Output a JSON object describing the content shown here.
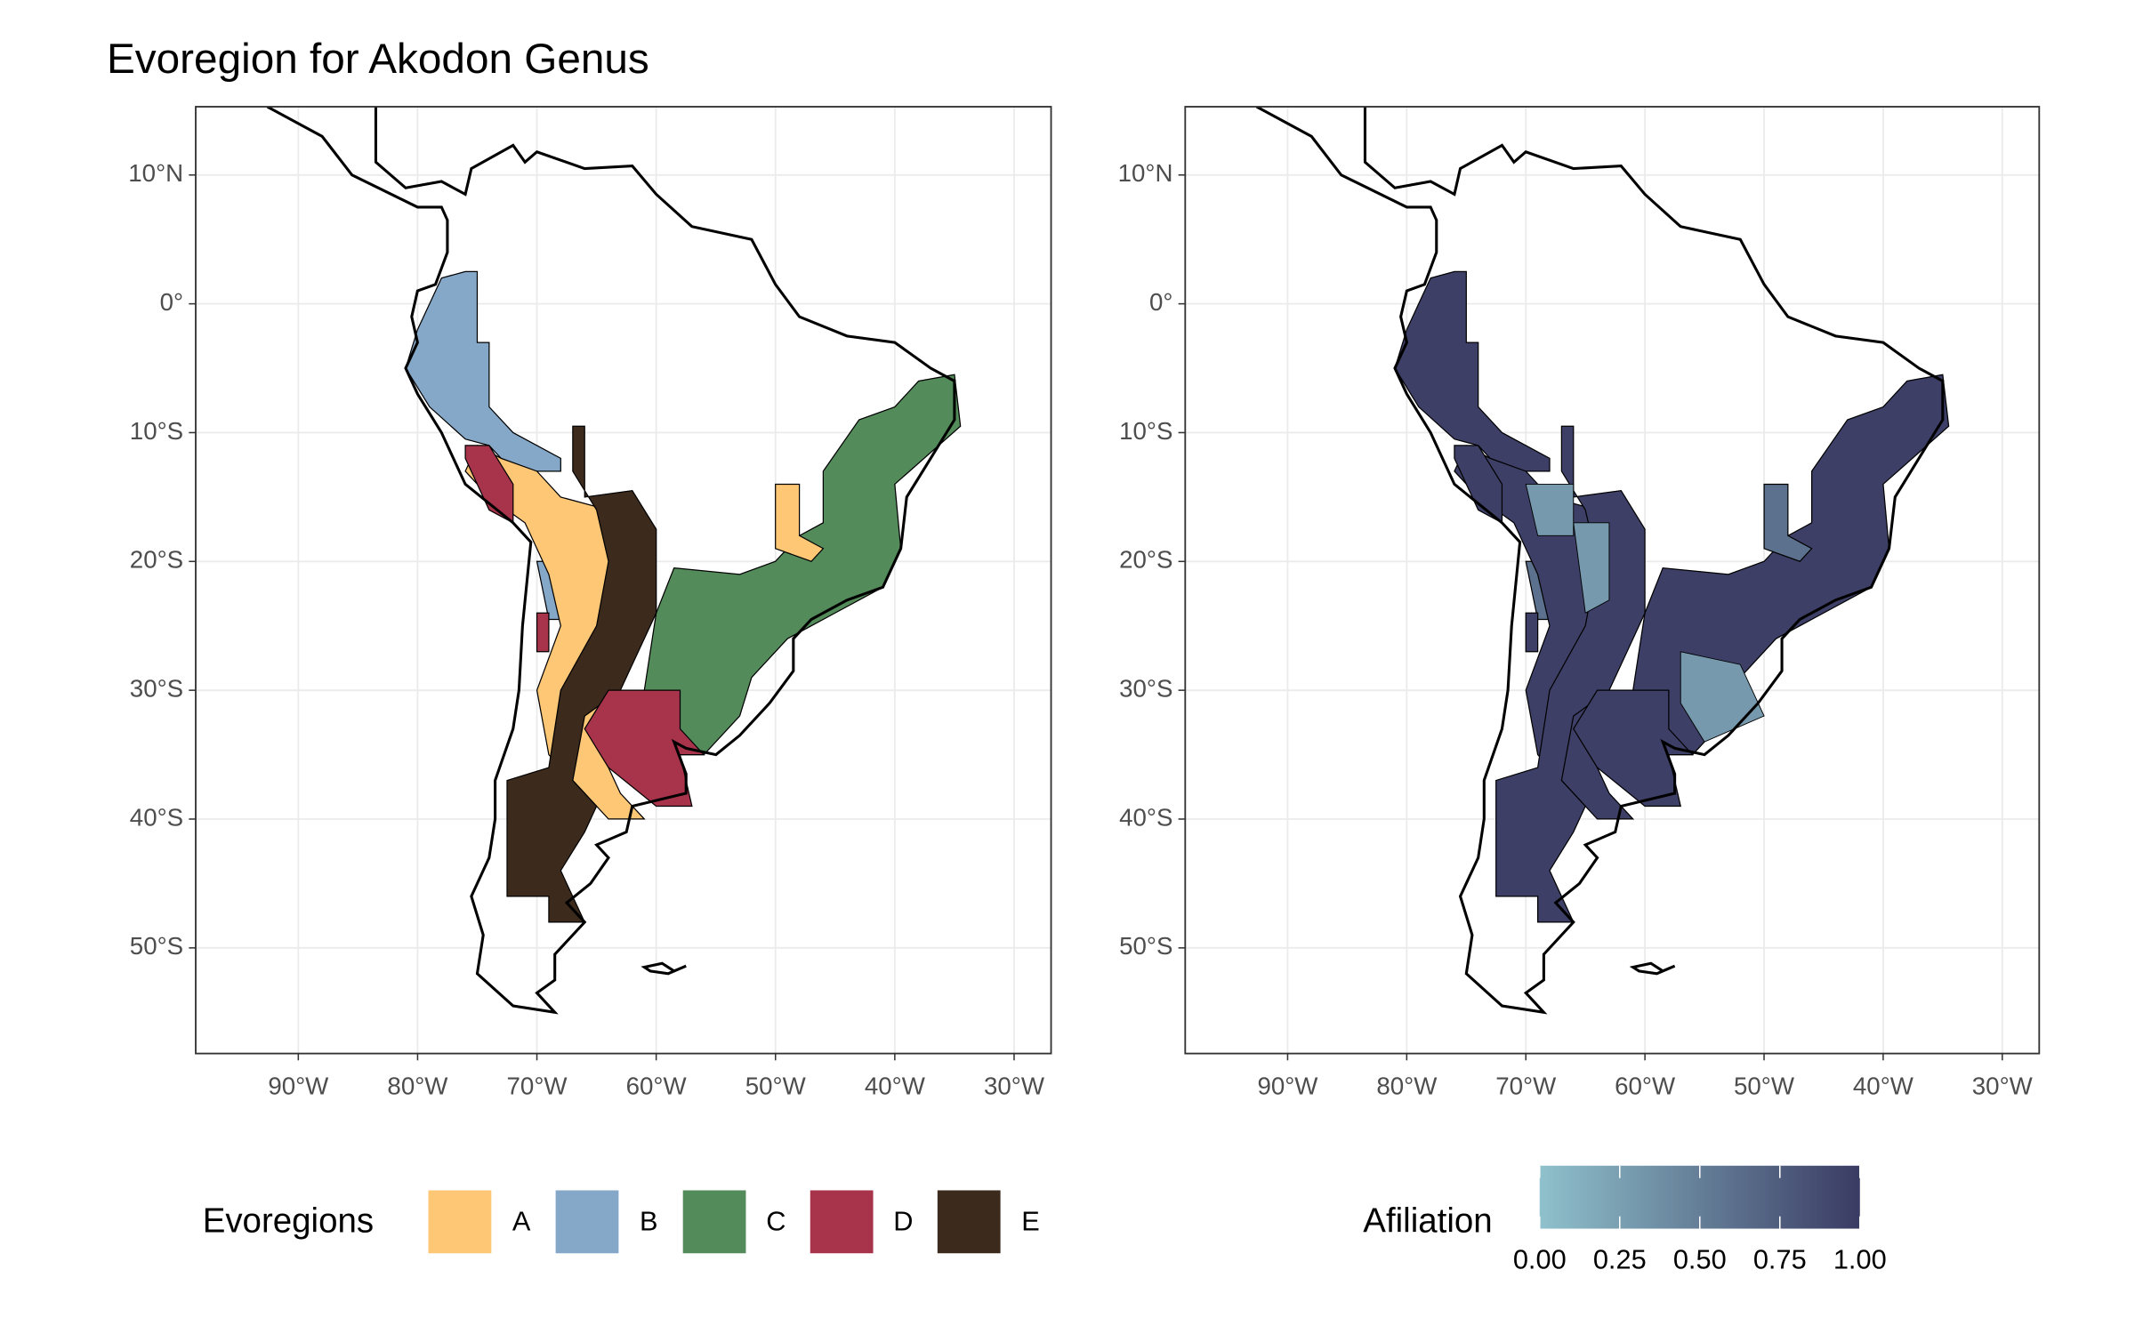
{
  "title": "Evoregion for Akodon Genus",
  "maps": [
    {
      "xlim": [
        -98.6,
        -26.9
      ],
      "ylim": [
        -58.2,
        15.3
      ],
      "xticks": [
        {
          "value": -90,
          "label": "90°W"
        },
        {
          "value": -80,
          "label": "80°W"
        },
        {
          "value": -70,
          "label": "70°W"
        },
        {
          "value": -60,
          "label": "60°W"
        },
        {
          "value": -50,
          "label": "50°W"
        },
        {
          "value": -40,
          "label": "40°W"
        },
        {
          "value": -30,
          "label": "30°W"
        }
      ],
      "yticks": [
        {
          "value": 10,
          "label": "10°N"
        },
        {
          "value": 0,
          "label": "0°"
        },
        {
          "value": -10,
          "label": "10°S"
        },
        {
          "value": -20,
          "label": "20°S"
        },
        {
          "value": -30,
          "label": "30°S"
        },
        {
          "value": -40,
          "label": "40°S"
        },
        {
          "value": -50,
          "label": "50°S"
        }
      ]
    },
    {
      "xlim": [
        -98.6,
        -26.9
      ],
      "ylim": [
        -58.2,
        15.3
      ],
      "xticks": [
        {
          "value": -90,
          "label": "90°W"
        },
        {
          "value": -80,
          "label": "80°W"
        },
        {
          "value": -70,
          "label": "70°W"
        },
        {
          "value": -60,
          "label": "60°W"
        },
        {
          "value": -50,
          "label": "50°W"
        },
        {
          "value": -40,
          "label": "40°W"
        },
        {
          "value": -30,
          "label": "30°W"
        }
      ],
      "yticks": [
        {
          "value": 10,
          "label": "10°N"
        },
        {
          "value": 0,
          "label": "0°"
        },
        {
          "value": -10,
          "label": "10°S"
        },
        {
          "value": -20,
          "label": "20°S"
        },
        {
          "value": -30,
          "label": "30°S"
        },
        {
          "value": -40,
          "label": "40°S"
        },
        {
          "value": -50,
          "label": "50°S"
        }
      ]
    }
  ],
  "legend": {
    "title": "Evoregions",
    "items": [
      {
        "name": "A",
        "color": "#fdc776"
      },
      {
        "name": "B",
        "color": "#86a8c8"
      },
      {
        "name": "C",
        "color": "#548b5a"
      },
      {
        "name": "D",
        "color": "#a8344c"
      },
      {
        "name": "E",
        "color": "#3c2a1d"
      }
    ]
  },
  "colorbar": {
    "title": "Afiliation",
    "lim": [
      0,
      1
    ],
    "colors": [
      "#8fc1cc",
      "#3a3b63"
    ],
    "ticks": [
      {
        "value": 0,
        "label": "0.00"
      },
      {
        "value": 0.25,
        "label": "0.25"
      },
      {
        "value": 0.5,
        "label": "0.50"
      },
      {
        "value": 0.75,
        "label": "0.75"
      },
      {
        "value": 1,
        "label": "1.00"
      }
    ]
  }
}
